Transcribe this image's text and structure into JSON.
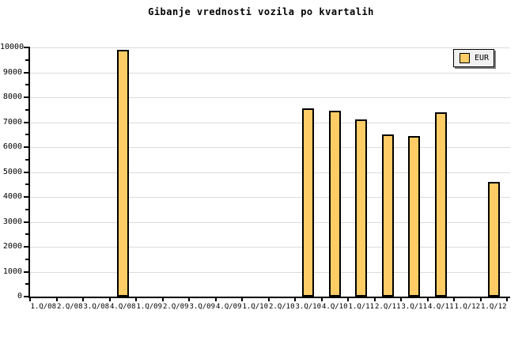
{
  "legend": {
    "label": "EUR",
    "swatch_color": "#FFCC66"
  },
  "colors": {
    "background": "#FFFFFF",
    "bar_fill": "#FFCC66",
    "bar_border": "#000000",
    "grid": "#DCDCDC",
    "axis": "#000000",
    "text": "#000000",
    "legend_bg": "#F0F0F0",
    "legend_border": "#000000",
    "legend_shadow": "#808080"
  },
  "chart_data": {
    "type": "bar",
    "title": "Gibanje vrednosti vozila po kvartalih",
    "xlabel": "",
    "ylabel": "",
    "categories": [
      "1.Q/08",
      "2.Q/08",
      "3.Q/08",
      "4.Q/08",
      "1.Q/09",
      "2.Q/09",
      "3.Q/09",
      "4.Q/09",
      "1.Q/10",
      "2.Q/10",
      "3.Q/10",
      "4.Q/10",
      "1.Q/11",
      "2.Q/11",
      "3.Q/11",
      "4.Q/11",
      "1.Q/12",
      "1.Q/12"
    ],
    "series": [
      {
        "name": "EUR",
        "values": [
          0,
          0,
          0,
          9900,
          0,
          0,
          0,
          0,
          0,
          0,
          7550,
          7450,
          7100,
          6500,
          6450,
          7400,
          0,
          4600
        ]
      }
    ],
    "ylim": [
      0,
      10000
    ],
    "yticks": [
      0,
      1000,
      2000,
      3000,
      4000,
      5000,
      6000,
      7000,
      8000,
      9000,
      10000
    ],
    "ytick_minor_step": 500,
    "grid": true,
    "legend_position": "top-right"
  }
}
